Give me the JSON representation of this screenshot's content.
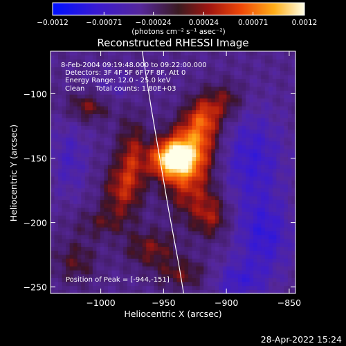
{
  "chart_data": {
    "type": "heatmap",
    "title": "Reconstructed RHESSI Image",
    "xlabel": "Heliocentric X (arcsec)",
    "ylabel": "Heliocentric Y (arcsec)",
    "xlim": [
      -1040,
      -845
    ],
    "ylim": [
      -255,
      -67
    ],
    "xticks": [
      -1000,
      -950,
      -900,
      -850
    ],
    "yticks": [
      -100,
      -150,
      -200,
      -250
    ],
    "xtick_labels": [
      "−1000",
      "−950",
      "−900",
      "−850"
    ],
    "ytick_labels": [
      "−100",
      "−150",
      "−200",
      "−250"
    ],
    "colorbar": {
      "range": [
        -0.0012,
        0.0012
      ],
      "ticks": [
        -0.0012,
        -0.00071,
        -0.00024,
        0.00024,
        0.00071,
        0.0012
      ],
      "tick_labels": [
        "−0.0012",
        "−0.00071",
        "−0.00024",
        "0.00024",
        "0.00071",
        "0.0012"
      ],
      "unit_label": "(photons cm⁻² s⁻¹ asec⁻²)"
    },
    "info_lines": [
      "8-Feb-2004 09:19:48.000 to 09:22:00.000",
      "Detectors: 3F 4F 5F 6F 7F 8F, Att 0",
      "Energy Range: 12.0 - 25.0 keV",
      "Clean     Total counts: 1.80E+03"
    ],
    "peak_label": "Position of Peak = [-944,-151]",
    "peak": {
      "x": -944,
      "y": -151
    },
    "limb_points": [
      [
        -967,
        -67
      ],
      [
        -960,
        -110
      ],
      [
        -953,
        -150
      ],
      [
        -946,
        -190
      ],
      [
        -938,
        -232
      ],
      [
        -934,
        -255
      ]
    ],
    "components": [
      {
        "x": -944,
        "y": -151,
        "amp": 0.00125,
        "sx": 12,
        "sy": 10
      },
      {
        "x": -928,
        "y": -140,
        "amp": 0.0008,
        "sx": 14,
        "sy": 14
      },
      {
        "x": -918,
        "y": -118,
        "amp": 0.0007,
        "sx": 10,
        "sy": 12
      },
      {
        "x": -930,
        "y": -170,
        "amp": 0.0006,
        "sx": 14,
        "sy": 18
      },
      {
        "x": -912,
        "y": -195,
        "amp": 0.0005,
        "sx": 10,
        "sy": 12
      },
      {
        "x": -975,
        "y": -150,
        "amp": 0.00055,
        "sx": 8,
        "sy": 22
      },
      {
        "x": -985,
        "y": -175,
        "amp": 0.0005,
        "sx": 10,
        "sy": 15
      },
      {
        "x": -1010,
        "y": -110,
        "amp": 0.00045,
        "sx": 12,
        "sy": 8
      },
      {
        "x": -960,
        "y": -220,
        "amp": 0.00045,
        "sx": 15,
        "sy": 10
      },
      {
        "x": -935,
        "y": -240,
        "amp": 0.0004,
        "sx": 15,
        "sy": 8
      },
      {
        "x": -1020,
        "y": -230,
        "amp": 0.00035,
        "sx": 12,
        "sy": 12
      },
      {
        "x": -1000,
        "y": -200,
        "amp": 0.0003,
        "sx": 15,
        "sy": 8
      },
      {
        "x": -900,
        "y": -105,
        "amp": 0.0004,
        "sx": 10,
        "sy": 10
      },
      {
        "x": -880,
        "y": -150,
        "amp": -0.00045,
        "sx": 18,
        "sy": 25
      },
      {
        "x": -870,
        "y": -210,
        "amp": -0.0005,
        "sx": 15,
        "sy": 20
      },
      {
        "x": -890,
        "y": -245,
        "amp": -0.0004,
        "sx": 15,
        "sy": 10
      },
      {
        "x": -1025,
        "y": -150,
        "amp": -0.0003,
        "sx": 10,
        "sy": 20
      },
      {
        "x": -990,
        "y": -95,
        "amp": -0.0002,
        "sx": 12,
        "sy": 8
      }
    ],
    "background_level": -0.00028
  },
  "footer": {
    "timestamp": "28-Apr-2022 15:24"
  }
}
